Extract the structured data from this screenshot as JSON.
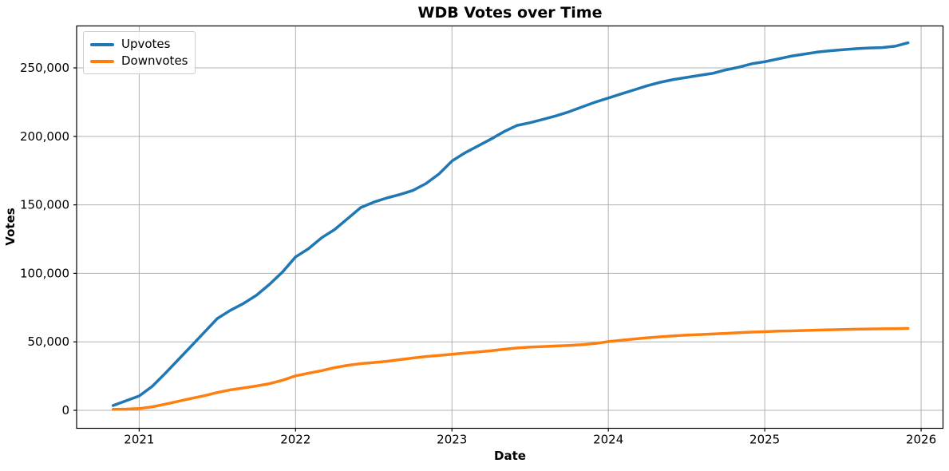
{
  "chart_data": {
    "type": "line",
    "title": "WDB Votes over Time",
    "xlabel": "Date",
    "ylabel": "Votes",
    "grid": true,
    "legend_position": "upper left",
    "xlim": [
      2020.6,
      2026.14
    ],
    "ylim": [
      -13100,
      280600
    ],
    "xticks": [
      {
        "v": 2021,
        "label": "2021"
      },
      {
        "v": 2022,
        "label": "2022"
      },
      {
        "v": 2023,
        "label": "2023"
      },
      {
        "v": 2024,
        "label": "2024"
      },
      {
        "v": 2025,
        "label": "2025"
      },
      {
        "v": 2026,
        "label": "2026"
      }
    ],
    "yticks": [
      {
        "v": 0,
        "label": "0"
      },
      {
        "v": 50000,
        "label": "50,000"
      },
      {
        "v": 100000,
        "label": "100,000"
      },
      {
        "v": 150000,
        "label": "150,000"
      },
      {
        "v": 200000,
        "label": "200,000"
      },
      {
        "v": 250000,
        "label": "250,000"
      }
    ],
    "months": [
      "2020-11",
      "2020-12",
      "2021-01",
      "2021-02",
      "2021-03",
      "2021-04",
      "2021-05",
      "2021-06",
      "2021-07",
      "2021-08",
      "2021-09",
      "2021-10",
      "2021-11",
      "2021-12",
      "2022-01",
      "2022-02",
      "2022-03",
      "2022-04",
      "2022-05",
      "2022-06",
      "2022-07",
      "2022-08",
      "2022-09",
      "2022-10",
      "2022-11",
      "2022-12",
      "2023-01",
      "2023-02",
      "2023-03",
      "2023-04",
      "2023-05",
      "2023-06",
      "2023-07",
      "2023-08",
      "2023-09",
      "2023-10",
      "2023-11",
      "2023-12",
      "2024-01",
      "2024-02",
      "2024-03",
      "2024-04",
      "2024-05",
      "2024-06",
      "2024-07",
      "2024-08",
      "2024-09",
      "2024-10",
      "2024-11",
      "2024-12",
      "2025-01",
      "2025-02",
      "2025-03",
      "2025-04",
      "2025-05",
      "2025-06",
      "2025-07",
      "2025-08",
      "2025-09",
      "2025-10",
      "2025-11",
      "2025-12"
    ],
    "series": [
      {
        "name": "Upvotes",
        "color": "#1f77b4",
        "values": [
          3500,
          7000,
          10500,
          17500,
          27000,
          37000,
          47000,
          57000,
          67000,
          73000,
          78000,
          84000,
          92000,
          101000,
          112000,
          118000,
          126000,
          132000,
          140000,
          148000,
          152000,
          155000,
          157500,
          160500,
          165500,
          172500,
          182000,
          188000,
          193000,
          198000,
          203500,
          208000,
          210000,
          212500,
          215000,
          218000,
          221500,
          225000,
          228000,
          231000,
          234000,
          237000,
          239500,
          241500,
          243000,
          244500,
          246000,
          248500,
          250500,
          253000,
          254500,
          256500,
          258500,
          260000,
          261500,
          262500,
          263300,
          264000,
          264500,
          264800,
          265800,
          268300
        ]
      },
      {
        "name": "Downvotes",
        "color": "#ff7f0e",
        "values": [
          700,
          900,
          1300,
          2600,
          4500,
          6600,
          8700,
          10700,
          13000,
          15000,
          16300,
          17800,
          19500,
          22000,
          25200,
          27100,
          29000,
          31200,
          32900,
          34100,
          34900,
          35800,
          37000,
          38200,
          39300,
          40100,
          41000,
          41800,
          42600,
          43500,
          44600,
          45500,
          46200,
          46600,
          47000,
          47400,
          48000,
          48800,
          50200,
          51200,
          52100,
          53000,
          53700,
          54300,
          54900,
          55300,
          55700,
          56200,
          56700,
          57100,
          57400,
          57800,
          58000,
          58300,
          58600,
          58800,
          59000,
          59200,
          59400,
          59500,
          59600,
          59800
        ]
      }
    ],
    "style_colors": {
      "grid": "#b0b0b0",
      "spine": "#000000",
      "text": "#000000",
      "legend_border": "#cccccc"
    }
  }
}
